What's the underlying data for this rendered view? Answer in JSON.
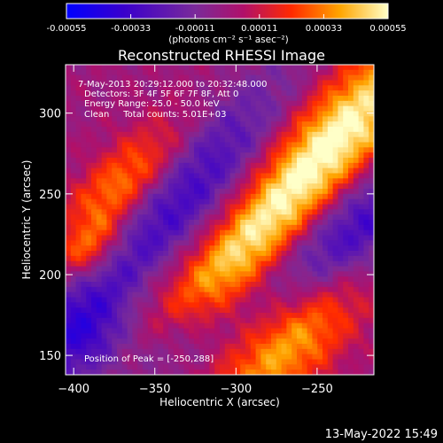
{
  "chart_data": {
    "type": "heatmap",
    "title": "Reconstructed RHESSI Image",
    "xlabel": "Heliocentric X (arcsec)",
    "ylabel": "Heliocentric Y (arcsec)",
    "xlim": [
      -405,
      -215
    ],
    "ylim": [
      138,
      330
    ],
    "x_ticks": [
      -400,
      -350,
      -300,
      -250
    ],
    "y_ticks": [
      150,
      200,
      250,
      300
    ],
    "colorbar": {
      "range": [
        -0.00055,
        0.00055
      ],
      "ticks": [
        "-0.00055",
        "-0.00033",
        "-0.00011",
        "0.00011",
        "0.00033",
        "0.00055"
      ],
      "units_label": "(photons cm⁻² s⁻¹ asec⁻²)"
    },
    "info_lines": [
      "7-May-2013 20:29:12.000 to 20:32:48.000",
      "Detectors: 3F 4F 5F 6F 7F 8F, Att 0",
      "Energy Range: 25.0 - 50.0 keV",
      "Clean     Total counts: 5.01E+03"
    ],
    "peak_label": "Position of Peak = [-250,288]",
    "peak": [
      -250,
      288
    ],
    "timestamp": "13-May-2022 15:49",
    "bands": [
      {
        "cx": -235,
        "cy": 290,
        "amp": 0.00052,
        "len": 120,
        "wid": 22
      },
      {
        "cx": -305,
        "cy": 205,
        "amp": 0.00044,
        "len": 130,
        "wid": 16
      },
      {
        "cx": -370,
        "cy": 255,
        "amp": 0.00038,
        "len": 70,
        "wid": 14
      },
      {
        "cx": -265,
        "cy": 160,
        "amp": 0.00045,
        "len": 95,
        "wid": 18
      },
      {
        "cx": -390,
        "cy": 215,
        "amp": 0.0003,
        "len": 35,
        "wid": 10
      }
    ],
    "troughs": [
      {
        "cx": -330,
        "cy": 250,
        "amp": -0.00035,
        "len": 150,
        "wid": 20
      },
      {
        "cx": -230,
        "cy": 225,
        "amp": -0.0004,
        "len": 100,
        "wid": 22
      },
      {
        "cx": -395,
        "cy": 160,
        "amp": -0.0003,
        "len": 50,
        "wid": 22
      },
      {
        "cx": -340,
        "cy": 160,
        "amp": -0.00025,
        "len": 60,
        "wid": 15
      }
    ]
  }
}
